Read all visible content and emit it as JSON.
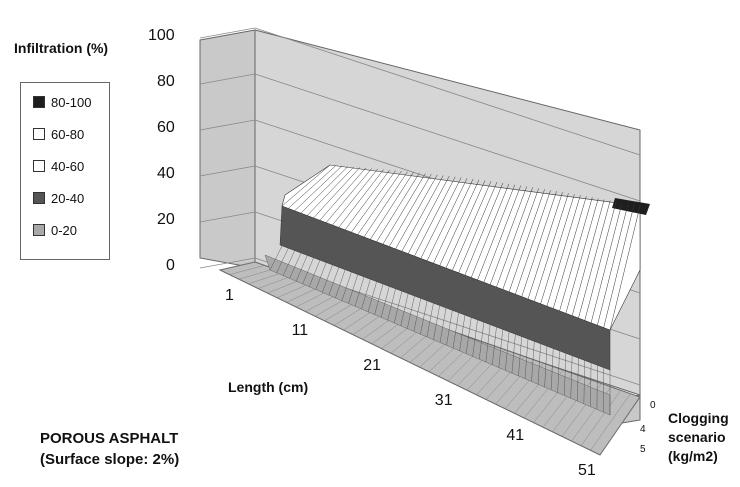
{
  "chart_data": {
    "type": "surface",
    "zlabel": "Infiltration (%)",
    "xlabel": "Length (cm)",
    "ylabel": "Clogging scenario (kg/m2)",
    "z_ticks": [
      "0",
      "20",
      "40",
      "60",
      "80",
      "100"
    ],
    "x_ticks": [
      "1",
      "11",
      "21",
      "31",
      "41",
      "51"
    ],
    "y_ticks": [
      "0",
      "4",
      "5"
    ],
    "zlim": [
      0,
      100
    ],
    "legend": [
      {
        "label": "80-100",
        "color": "#1e1e1e"
      },
      {
        "label": "60-80",
        "color": "#ffffff"
      },
      {
        "label": "40-60",
        "color": "#ffffff"
      },
      {
        "label": "20-40",
        "color": "#555555"
      },
      {
        "label": "0-20",
        "color": "#a8a8a8"
      }
    ],
    "series": [
      {
        "y": 0,
        "x": [
          1,
          6,
          11,
          21,
          31,
          41,
          51
        ],
        "z": [
          0,
          28,
          47,
          47,
          45,
          40,
          28
        ]
      },
      {
        "y": 4,
        "x": [
          1,
          6,
          11,
          21,
          31,
          41,
          51
        ],
        "z": [
          0,
          10,
          20,
          20,
          18,
          15,
          10
        ]
      },
      {
        "y": 5,
        "x": [
          1,
          6,
          11,
          21,
          31,
          41,
          51
        ],
        "z": [
          0,
          2,
          3,
          2,
          2,
          2,
          2
        ]
      }
    ]
  },
  "caption": {
    "line1": "POROUS ASPHALT",
    "line2": "(Surface slope: 2%)"
  }
}
